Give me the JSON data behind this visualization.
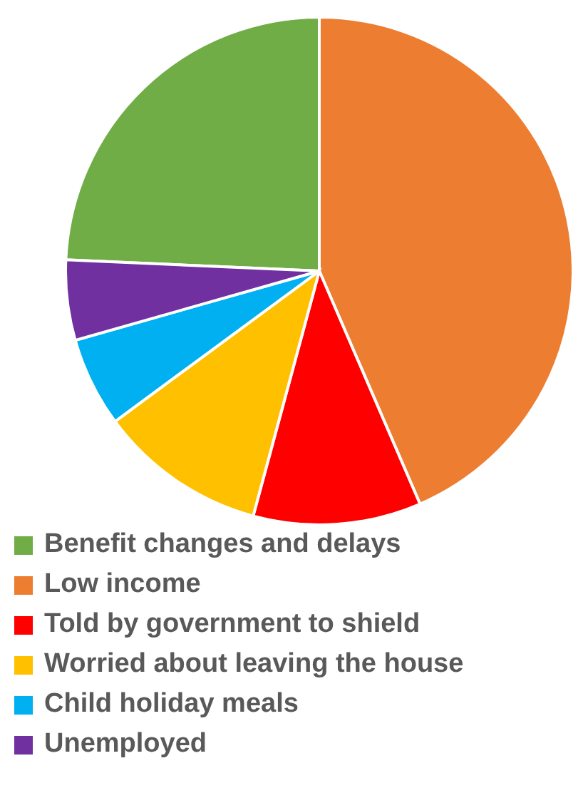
{
  "chart_data": {
    "type": "pie",
    "categories": [
      "Benefit changes and delays",
      "Low income",
      "Told by government to shield",
      "Worried about leaving the house",
      "Child holiday meals",
      "Unemployed"
    ],
    "values": [
      24.3,
      43.5,
      10.7,
      10.7,
      5.7,
      5.1
    ],
    "colors": [
      "#70ad47",
      "#ed7d31",
      "#ff0000",
      "#ffc000",
      "#00b0f0",
      "#7030a0"
    ],
    "legend": "bottom"
  }
}
